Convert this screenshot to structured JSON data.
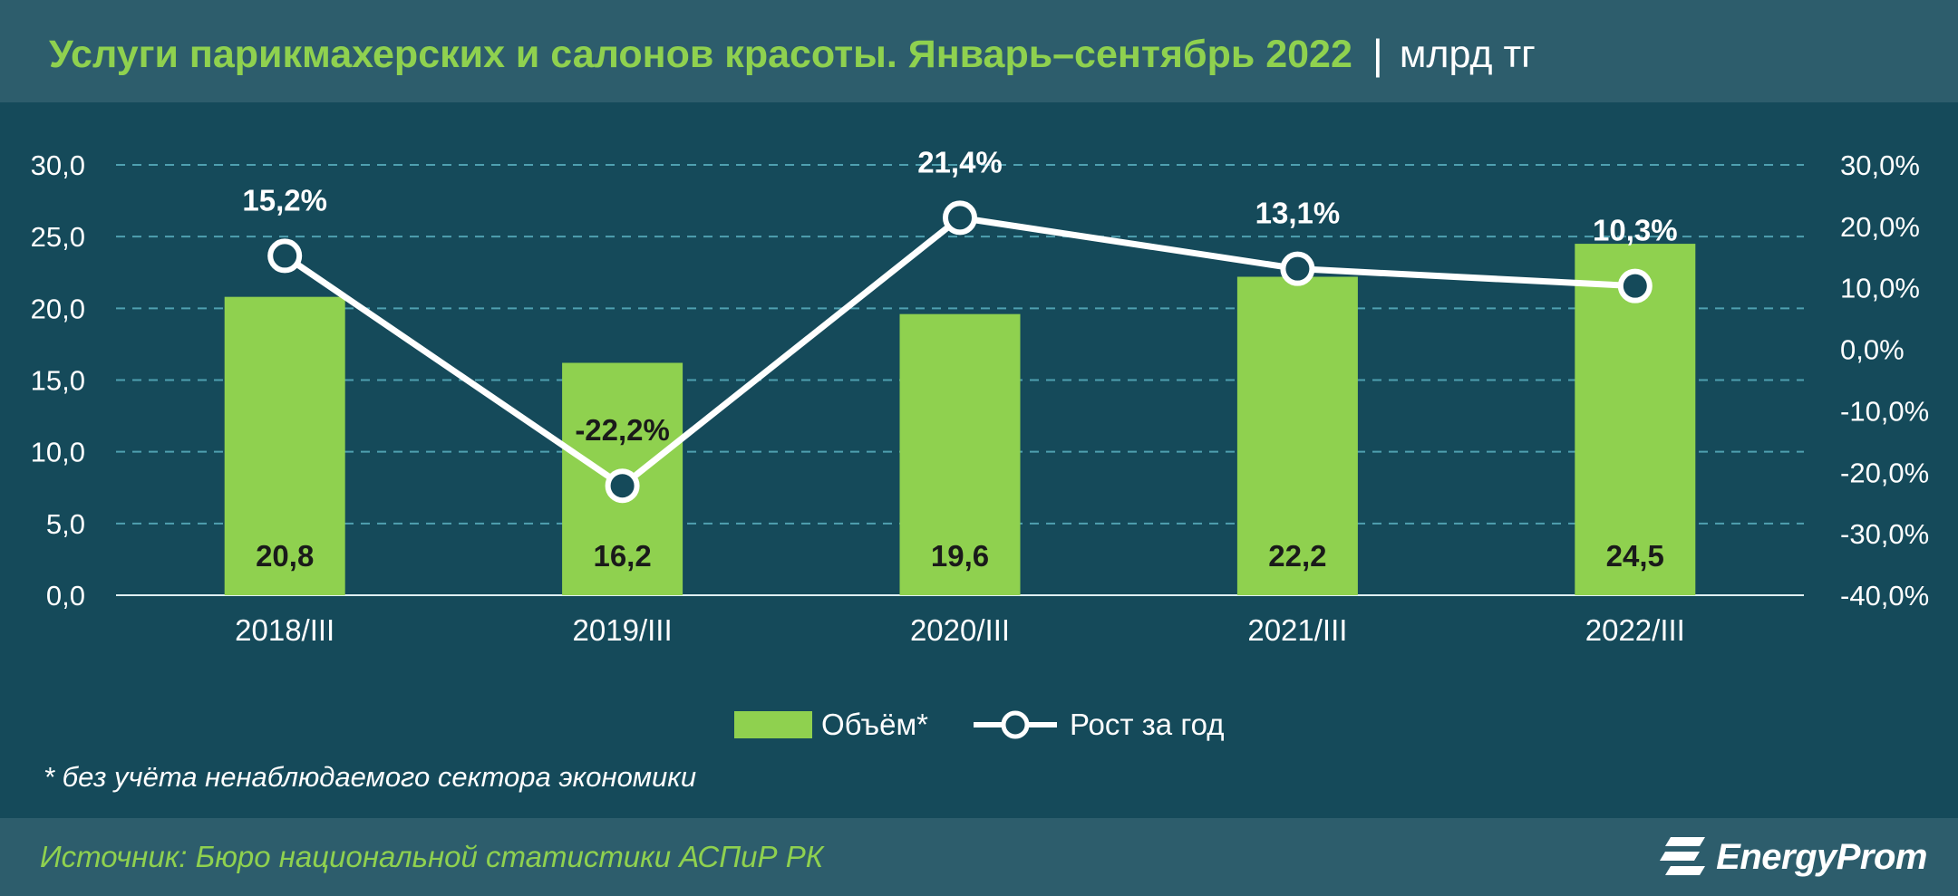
{
  "header": {
    "title": "Услуги парикмахерских и салонов красоты. Январь–сентябрь 2022",
    "separator": "|",
    "unit": "млрд тг"
  },
  "chart_data": {
    "type": "bar",
    "categories": [
      "2018/III",
      "2019/III",
      "2020/III",
      "2021/III",
      "2022/III"
    ],
    "series": [
      {
        "name": "Объём*",
        "type": "bar",
        "axis": "left",
        "values": [
          20.8,
          16.2,
          19.6,
          22.2,
          24.5
        ],
        "labels": [
          "20,8",
          "16,2",
          "19,6",
          "22,2",
          "24,5"
        ]
      },
      {
        "name": "Рост за год",
        "type": "line",
        "axis": "right",
        "values": [
          15.2,
          -22.2,
          21.4,
          13.1,
          10.3
        ],
        "labels": [
          "15,2%",
          "-22,2%",
          "21,4%",
          "13,1%",
          "10,3%"
        ]
      }
    ],
    "y_left": {
      "range": [
        0,
        30
      ],
      "ticks": [
        "0,0",
        "5,0",
        "10,0",
        "15,0",
        "20,0",
        "25,0",
        "30,0"
      ]
    },
    "y_right": {
      "range": [
        -40,
        30
      ],
      "ticks": [
        "-40,0%",
        "-30,0%",
        "-20,0%",
        "-10,0%",
        "0,0%",
        "10,0%",
        "20,0%",
        "30,0%"
      ]
    },
    "grid": true,
    "legend": "bottom",
    "colors": {
      "bar": "#8fd14f",
      "line": "#ffffff",
      "grid": "#4fa0b0",
      "bar_label": "#1a1a1a"
    }
  },
  "note": "* без учёта ненаблюдаемого сектора экономики",
  "footer": {
    "source": "Источник: Бюро национальной статистики АСПиР РК",
    "logo": "EnergyProm"
  }
}
